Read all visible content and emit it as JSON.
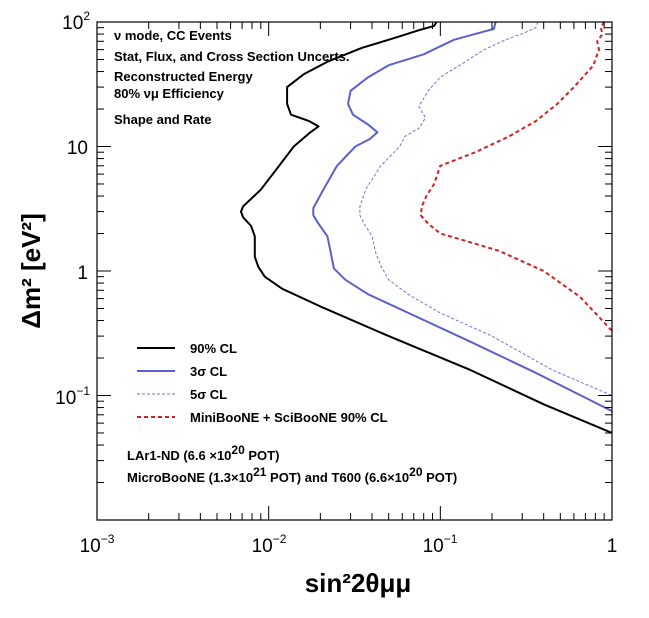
{
  "chart_data": {
    "type": "line",
    "title": "",
    "xlabel": "sin²2θμμ",
    "ylabel": "Δm² [eV²]",
    "xscale": "log",
    "yscale": "log",
    "xlim": [
      0.001,
      1
    ],
    "ylim": [
      0.01,
      100
    ],
    "x_ticks": [
      {
        "base": "10",
        "exp": "−3"
      },
      {
        "base": "10",
        "exp": "−2"
      },
      {
        "base": "10",
        "exp": "−1"
      },
      {
        "base": "1",
        "exp": ""
      }
    ],
    "y_ticks": [
      {
        "base": "10",
        "exp": "−1"
      },
      {
        "base": "1",
        "exp": ""
      },
      {
        "base": "10",
        "exp": ""
      },
      {
        "base": "10",
        "exp": "2"
      }
    ],
    "annotations": [
      "ν mode, CC Events",
      "Stat, Flux, and Cross Section Uncerts.",
      "Reconstructed Energy",
      "80% νμ Efficiency",
      "Shape and Rate"
    ],
    "footnote": [
      {
        "parts": [
          "LAr1-ND (6.6 ×10",
          "20",
          " POT)"
        ]
      },
      {
        "parts": [
          "MicroBooNE (1.3×10",
          "21",
          " POT) and T600 (6.6×10",
          "20",
          " POT)"
        ]
      }
    ],
    "legend_position": "bottom-left",
    "series": [
      {
        "name": "90% CL",
        "color": "#000000",
        "dash": "solid",
        "points": [
          [
            0.095,
            100
          ],
          [
            0.092,
            93
          ],
          [
            0.075,
            86
          ],
          [
            0.055,
            75
          ],
          [
            0.035,
            62
          ],
          [
            0.022,
            48
          ],
          [
            0.016,
            38
          ],
          [
            0.0128,
            30
          ],
          [
            0.0128,
            22
          ],
          [
            0.0135,
            18
          ],
          [
            0.0172,
            16
          ],
          [
            0.0195,
            14.5
          ],
          [
            0.0175,
            13
          ],
          [
            0.014,
            10
          ],
          [
            0.0115,
            7
          ],
          [
            0.009,
            4.5
          ],
          [
            0.0071,
            3.3
          ],
          [
            0.0069,
            3
          ],
          [
            0.0071,
            2.7
          ],
          [
            0.0079,
            2.3
          ],
          [
            0.0083,
            1.9
          ],
          [
            0.0083,
            1.3
          ],
          [
            0.0087,
            1.08
          ],
          [
            0.0095,
            0.9
          ],
          [
            0.012,
            0.72
          ],
          [
            0.02,
            0.52
          ],
          [
            0.05,
            0.3
          ],
          [
            0.15,
            0.16
          ],
          [
            0.4,
            0.085
          ],
          [
            1,
            0.05
          ]
        ]
      },
      {
        "name": "3σ CL",
        "color": "#5b5fcf",
        "dash": "solid",
        "points": [
          [
            0.21,
            100
          ],
          [
            0.205,
            88
          ],
          [
            0.17,
            82
          ],
          [
            0.12,
            72
          ],
          [
            0.08,
            55
          ],
          [
            0.05,
            45
          ],
          [
            0.038,
            36
          ],
          [
            0.03,
            28
          ],
          [
            0.029,
            22
          ],
          [
            0.031,
            18
          ],
          [
            0.038,
            15
          ],
          [
            0.043,
            13
          ],
          [
            0.039,
            11.5
          ],
          [
            0.032,
            10
          ],
          [
            0.025,
            7
          ],
          [
            0.021,
            4.6
          ],
          [
            0.0182,
            3.2
          ],
          [
            0.0182,
            2.8
          ],
          [
            0.0195,
            2.4
          ],
          [
            0.022,
            1.9
          ],
          [
            0.023,
            1.4
          ],
          [
            0.024,
            1.05
          ],
          [
            0.028,
            0.85
          ],
          [
            0.038,
            0.65
          ],
          [
            0.07,
            0.44
          ],
          [
            0.15,
            0.27
          ],
          [
            0.35,
            0.155
          ],
          [
            1,
            0.075
          ]
        ]
      },
      {
        "name": "5σ CL",
        "color": "#6f73d8",
        "dash": "short",
        "points": [
          [
            0.37,
            100
          ],
          [
            0.36,
            90
          ],
          [
            0.31,
            82
          ],
          [
            0.24,
            72
          ],
          [
            0.18,
            60
          ],
          [
            0.14,
            48
          ],
          [
            0.1,
            36
          ],
          [
            0.085,
            28
          ],
          [
            0.075,
            21
          ],
          [
            0.082,
            17
          ],
          [
            0.075,
            14
          ],
          [
            0.062,
            12
          ],
          [
            0.058,
            10
          ],
          [
            0.045,
            7
          ],
          [
            0.037,
            4.6
          ],
          [
            0.034,
            3.3
          ],
          [
            0.034,
            2.8
          ],
          [
            0.036,
            2.4
          ],
          [
            0.04,
            1.9
          ],
          [
            0.042,
            1.4
          ],
          [
            0.045,
            1.1
          ],
          [
            0.05,
            0.85
          ],
          [
            0.065,
            0.65
          ],
          [
            0.1,
            0.46
          ],
          [
            0.2,
            0.3
          ],
          [
            0.45,
            0.16
          ],
          [
            1,
            0.1
          ]
        ]
      },
      {
        "name": "MiniBooNE + SciBooNE 90% CL",
        "color": "#d42020",
        "dash": "medium",
        "points": [
          [
            0.9,
            100
          ],
          [
            0.86,
            90
          ],
          [
            0.88,
            80
          ],
          [
            0.82,
            70
          ],
          [
            0.84,
            60
          ],
          [
            0.8,
            50
          ],
          [
            0.78,
            45
          ],
          [
            0.7,
            38
          ],
          [
            0.6,
            30
          ],
          [
            0.48,
            22
          ],
          [
            0.36,
            16
          ],
          [
            0.25,
            12
          ],
          [
            0.16,
            9
          ],
          [
            0.1,
            7
          ],
          [
            0.092,
            5
          ],
          [
            0.083,
            4
          ],
          [
            0.078,
            3.3
          ],
          [
            0.077,
            2.8
          ],
          [
            0.085,
            2.4
          ],
          [
            0.1,
            2
          ],
          [
            0.13,
            1.8
          ],
          [
            0.22,
            1.45
          ],
          [
            0.4,
            1
          ],
          [
            0.65,
            0.62
          ],
          [
            0.85,
            0.42
          ],
          [
            1,
            0.33
          ]
        ]
      }
    ]
  }
}
